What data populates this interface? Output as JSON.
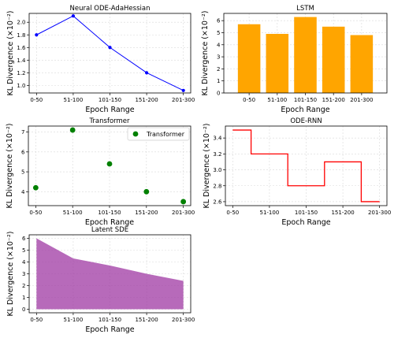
{
  "chart_data": [
    {
      "type": "line",
      "title": "Neural ODE-AdaHessian",
      "xlabel": "Epoch Range",
      "ylabel": "KL Divergence (×10⁻²)",
      "categories": [
        "0-50",
        "51-100",
        "101-150",
        "151-200",
        "201-300"
      ],
      "series": [
        {
          "values": [
            1.8,
            2.1,
            1.6,
            1.2,
            0.92
          ]
        }
      ],
      "ylim": [
        0.88,
        2.14
      ],
      "yticks": [
        1.0,
        1.2,
        1.4,
        1.6,
        1.8,
        2.0
      ],
      "color": "#0000ff",
      "grid": true
    },
    {
      "type": "bar",
      "title": "LSTM",
      "xlabel": "Epoch Range",
      "ylabel": "KL Divergence (×10⁻²)",
      "categories": [
        "0-50",
        "51-100",
        "101-150",
        "151-200",
        "201-300"
      ],
      "values": [
        5.7,
        4.9,
        6.3,
        5.5,
        4.8
      ],
      "ylim": [
        0,
        6.6
      ],
      "yticks": [
        0,
        1,
        2,
        3,
        4,
        5,
        6
      ],
      "color": "#ffa500",
      "grid": true
    },
    {
      "type": "scatter",
      "title": "Transformer",
      "xlabel": "Epoch Range",
      "ylabel": "KL Divergence (×10⁻²)",
      "categories": [
        "0-50",
        "51-100",
        "101-150",
        "151-200",
        "201-300"
      ],
      "series": [
        {
          "name": "Transformer",
          "values": [
            4.2,
            7.1,
            5.4,
            4.0,
            3.5
          ]
        }
      ],
      "ylim": [
        3.3,
        7.3
      ],
      "yticks": [
        4,
        5,
        6,
        7
      ],
      "color": "#008000",
      "legend": "top-right",
      "grid": true
    },
    {
      "type": "line",
      "step": "mid",
      "title": "ODE-RNN",
      "xlabel": "Epoch Range",
      "ylabel": "KL Divergence (×10⁻²)",
      "categories": [
        "0-50",
        "51-100",
        "101-150",
        "151-200",
        "201-300"
      ],
      "series": [
        {
          "values": [
            3.5,
            3.2,
            2.8,
            3.1,
            2.6
          ]
        }
      ],
      "ylim": [
        2.55,
        3.55
      ],
      "yticks": [
        2.6,
        2.8,
        3.0,
        3.2,
        3.4
      ],
      "color": "#ff0000",
      "grid": true
    },
    {
      "type": "area",
      "title": "Latent SDE",
      "xlabel": "Epoch Range",
      "ylabel": "KL Divergence (×10⁻²)",
      "categories": [
        "0-50",
        "51-100",
        "101-150",
        "151-200",
        "201-300"
      ],
      "series": [
        {
          "values": [
            6.0,
            4.3,
            3.7,
            3.0,
            2.4
          ]
        }
      ],
      "ylim": [
        -0.3,
        6.3
      ],
      "yticks": [
        0,
        1,
        2,
        3,
        4,
        5,
        6
      ],
      "color": "#9b30a0",
      "grid": true
    }
  ]
}
